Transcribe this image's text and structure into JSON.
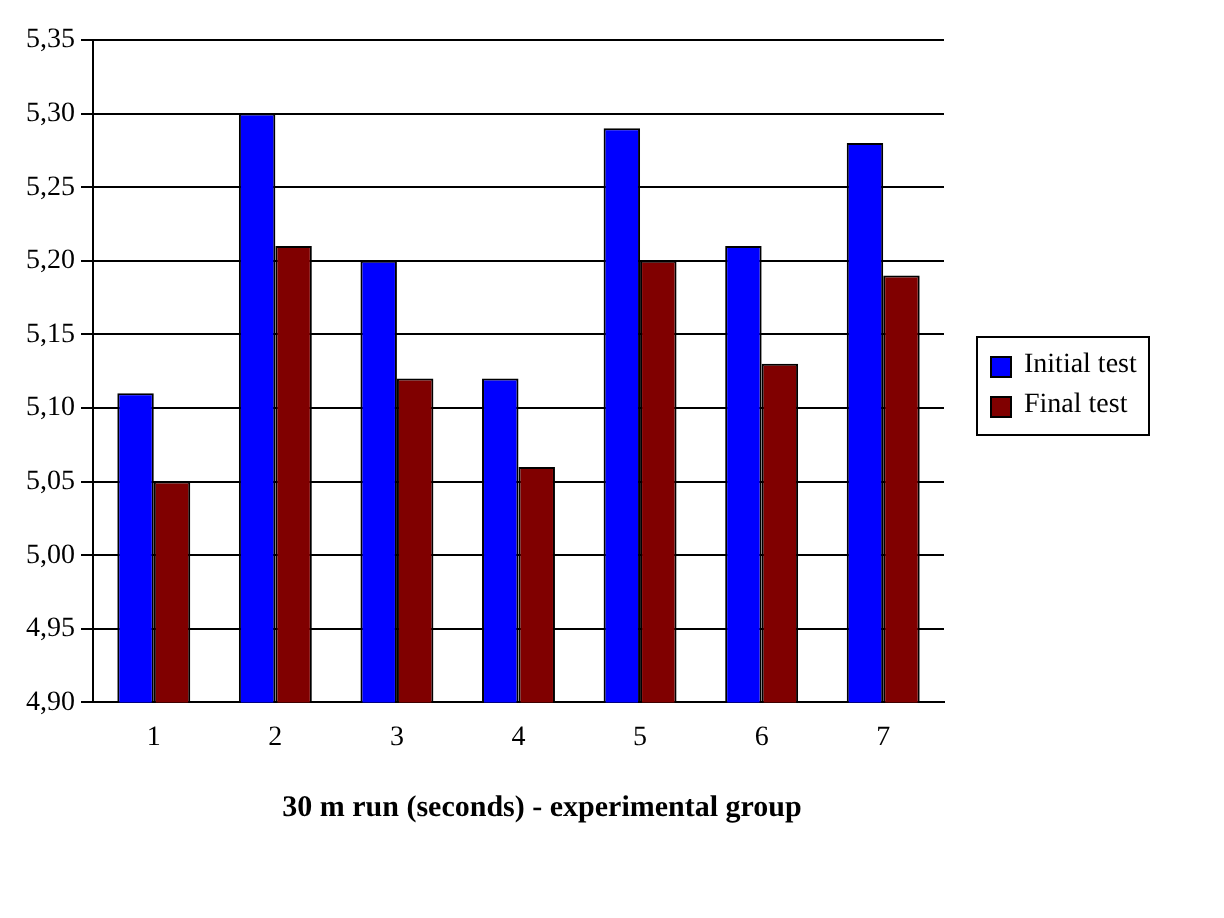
{
  "chart_data": {
    "type": "bar",
    "xlabel": "30 m run (seconds) - experimental group",
    "categories": [
      "1",
      "2",
      "3",
      "4",
      "5",
      "6",
      "7"
    ],
    "series": [
      {
        "name": "Initial test",
        "color": "#0000ff",
        "values": [
          5.11,
          5.3,
          5.2,
          5.12,
          5.29,
          5.21,
          5.28
        ]
      },
      {
        "name": "Final test",
        "color": "#800000",
        "values": [
          5.05,
          5.21,
          5.12,
          5.06,
          5.2,
          5.13,
          5.19
        ]
      }
    ],
    "ylim": [
      4.9,
      5.35
    ],
    "yticks": [
      {
        "value": 4.9,
        "label": "4,90"
      },
      {
        "value": 4.95,
        "label": "4,95"
      },
      {
        "value": 5.0,
        "label": "5,00"
      },
      {
        "value": 5.05,
        "label": "5,05"
      },
      {
        "value": 5.1,
        "label": "5,10"
      },
      {
        "value": 5.15,
        "label": "5,15"
      },
      {
        "value": 5.2,
        "label": "5,20"
      },
      {
        "value": 5.25,
        "label": "5,25"
      },
      {
        "value": 5.3,
        "label": "5,30"
      },
      {
        "value": 5.35,
        "label": "5,35"
      }
    ],
    "grid": "y",
    "legend": "right"
  }
}
